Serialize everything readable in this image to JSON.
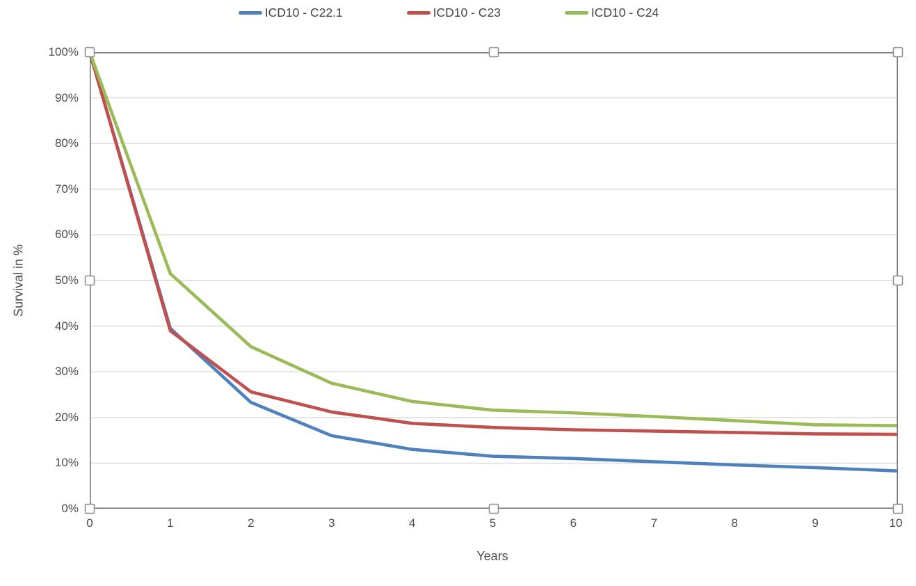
{
  "chart_data": {
    "type": "line",
    "x": [
      0,
      1,
      2,
      3,
      4,
      5,
      6,
      7,
      8,
      9,
      10
    ],
    "series": [
      {
        "name": "ICD10 - C22.1",
        "color": "#4F81BD",
        "values": [
          100,
          39.5,
          23.3,
          16.0,
          13.0,
          11.5,
          11.0,
          10.3,
          9.6,
          9.0,
          8.3
        ]
      },
      {
        "name": "ICD10 - C23",
        "color": "#C0504D",
        "values": [
          100,
          39.0,
          25.6,
          21.2,
          18.7,
          17.8,
          17.3,
          17.0,
          16.7,
          16.4,
          16.3
        ]
      },
      {
        "name": "ICD10 - C24",
        "color": "#9BBB59",
        "values": [
          100,
          51.5,
          35.5,
          27.5,
          23.5,
          21.6,
          21.0,
          20.2,
          19.3,
          18.4,
          18.2
        ]
      }
    ],
    "title": "",
    "xlabel": "Years",
    "ylabel": "Survival in %",
    "xlim": [
      0,
      10
    ],
    "ylim": [
      0,
      100
    ],
    "grid": true,
    "legend_position": "top"
  },
  "y_axis": {
    "title": "Survival in %",
    "ticks": [
      "100%",
      "90%",
      "80%",
      "70%",
      "60%",
      "50%",
      "40%",
      "30%",
      "20%",
      "10%",
      "0%"
    ]
  },
  "x_axis": {
    "title": "Years",
    "ticks": [
      "0",
      "1",
      "2",
      "3",
      "4",
      "5",
      "6",
      "7",
      "8",
      "9",
      "10"
    ]
  },
  "selection": {
    "plot_area_selected": true,
    "handle_count": 8
  },
  "colors": {
    "gridline": "#D9D9D9",
    "axis_border": "#767676",
    "handle_fill": "#FFFFFF",
    "handle_border": "#8A8A8A",
    "text": "#4d4d4d"
  }
}
